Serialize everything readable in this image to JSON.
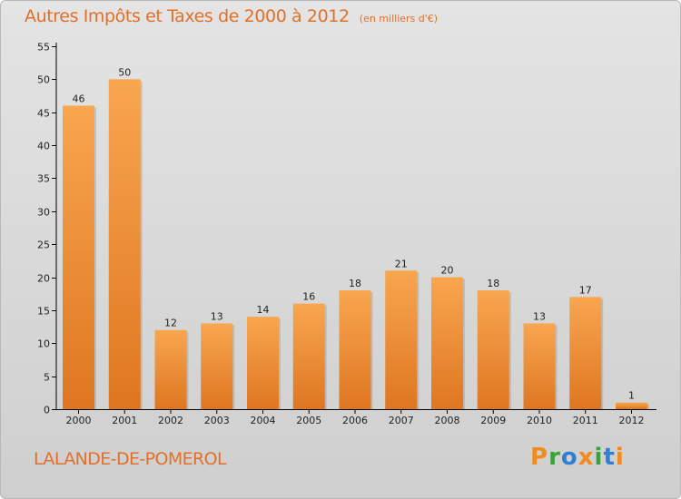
{
  "chart_data": {
    "type": "bar",
    "title": "Autres Impôts et Taxes de 2000 à 2012",
    "subtitle": "(en milliers d'€)",
    "categories": [
      "2000",
      "2001",
      "2002",
      "2003",
      "2004",
      "2005",
      "2006",
      "2007",
      "2008",
      "2009",
      "2010",
      "2011",
      "2012"
    ],
    "values": [
      46,
      50,
      12,
      13,
      14,
      16,
      18,
      21,
      20,
      18,
      13,
      17,
      1
    ],
    "ylim": [
      0,
      55
    ],
    "yticks": [
      0,
      5,
      10,
      15,
      20,
      25,
      30,
      35,
      40,
      45,
      50,
      55
    ],
    "xlabel": "",
    "ylabel": "",
    "grid": false,
    "colors": {
      "bar_top": "#f8a64f",
      "bar_bottom": "#df7621",
      "title": "#e0702a",
      "axis": "#000000"
    }
  },
  "commune": "LALANDE-DE-POMEROL",
  "logo": {
    "text": "Proxiti",
    "letter_colors": [
      "#f28a1e",
      "#3aa23a",
      "#2f7fd3",
      "#f28a1e",
      "#3aa23a",
      "#2f7fd3",
      "#f28a1e"
    ]
  }
}
